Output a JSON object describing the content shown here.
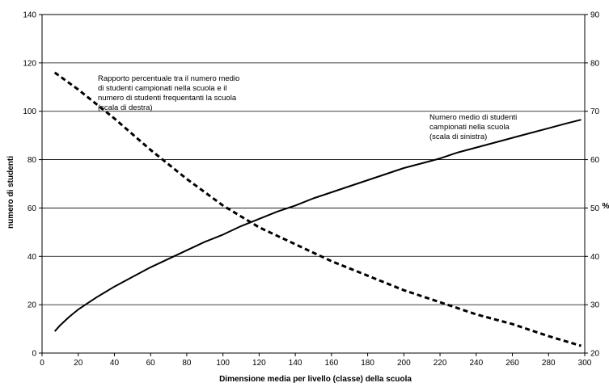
{
  "chart_data": {
    "type": "line",
    "xlabel": "Dimensione media per livello (classe) della scuola",
    "ylabel": "numero di studenti",
    "y2label": "%",
    "xlim": [
      0,
      300
    ],
    "ylim": [
      0,
      140
    ],
    "y2lim": [
      20,
      90
    ],
    "x_ticks": [
      0,
      20,
      40,
      60,
      80,
      100,
      120,
      140,
      160,
      180,
      200,
      220,
      240,
      260,
      280,
      300
    ],
    "y_ticks": [
      0,
      20,
      40,
      60,
      80,
      100,
      120,
      140
    ],
    "y2_ticks": [
      20,
      30,
      40,
      50,
      60,
      70,
      80,
      90
    ],
    "grid": "horizontal",
    "series": [
      {
        "axis": "left",
        "style": "solid",
        "color": "#000000",
        "x": [
          7,
          10,
          15,
          20,
          25,
          30,
          40,
          50,
          60,
          70,
          80,
          90,
          100,
          110,
          120,
          130,
          140,
          150,
          160,
          170,
          180,
          190,
          200,
          210,
          220,
          230,
          240,
          250,
          260,
          270,
          280,
          290,
          298
        ],
        "y": [
          9,
          11.5,
          15,
          18,
          20.5,
          23,
          27.5,
          31.5,
          35.5,
          39,
          42.5,
          46,
          49,
          52.5,
          55.5,
          58.5,
          61,
          64,
          66.5,
          69,
          71.5,
          74,
          76.5,
          78.5,
          80.5,
          83,
          85,
          87,
          89,
          91,
          93,
          95,
          96.5
        ]
      },
      {
        "axis": "right",
        "style": "dashed",
        "color": "#000000",
        "x": [
          7,
          20,
          40,
          60,
          80,
          100,
          120,
          140,
          160,
          180,
          200,
          220,
          240,
          260,
          280,
          298
        ],
        "y": [
          78,
          74.5,
          68.5,
          62,
          56,
          50.5,
          46,
          42.5,
          39,
          36,
          33,
          30.5,
          28,
          26,
          23.5,
          21.5
        ]
      }
    ],
    "annotations": [
      {
        "lines": [
          "Rapporto percentuale tra il numero  medio",
          "di studenti campionati nella scuola e il",
          "numero di studenti  frequentanti la scuola",
          "(scala di destra)"
        ]
      },
      {
        "lines": [
          "Numero medio di studenti",
          "campionati nella scuola",
          "(scala di sinistra)"
        ]
      }
    ]
  }
}
